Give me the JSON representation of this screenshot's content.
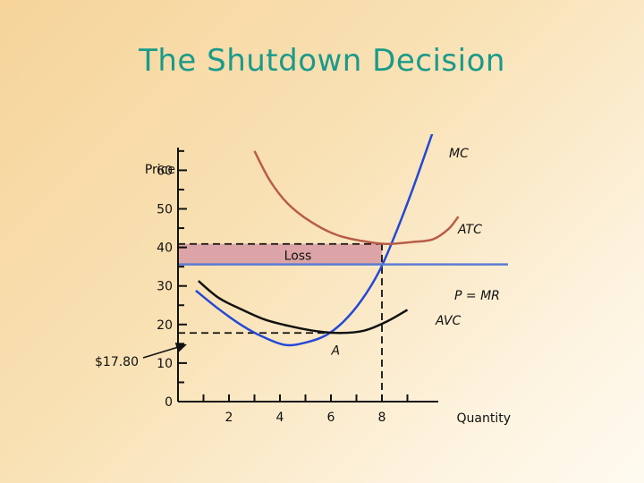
{
  "slide": {
    "title": "The Shutdown Decision"
  },
  "chart_data": {
    "type": "line",
    "title": "The Shutdown Decision",
    "xlabel": "Quantity",
    "ylabel": "Price",
    "xlim": [
      0,
      12
    ],
    "ylim": [
      0,
      70
    ],
    "x_ticks": [
      2,
      4,
      6,
      8
    ],
    "x_tick_labels": [
      "2",
      "4",
      "6",
      "8"
    ],
    "y_ticks": [
      0,
      10,
      20,
      30,
      40,
      50,
      60
    ],
    "y_tick_labels": [
      "0",
      "10",
      "20",
      "30",
      "40",
      "50",
      "60"
    ],
    "grid": false,
    "series": [
      {
        "name": "MC",
        "color": "#2448d6",
        "x": [
          0.7,
          1.6,
          2.5,
          3.3,
          4.2,
          5.0,
          5.8,
          6.5,
          7.2,
          7.9,
          8.5,
          9.2,
          10.0,
          10.8
        ],
        "y": [
          28.8,
          24.0,
          19.8,
          16.9,
          14.7,
          15.3,
          17.2,
          20.8,
          26.3,
          33.9,
          43.0,
          55.0,
          70.0,
          85.0
        ]
      },
      {
        "name": "ATC",
        "color": "#b85c48",
        "x": [
          3.0,
          3.6,
          4.3,
          5.2,
          6.2,
          7.2,
          8.2,
          9.2,
          10.0,
          10.6,
          11.0
        ],
        "y": [
          65.0,
          57.4,
          51.4,
          46.7,
          43.3,
          41.7,
          40.9,
          41.4,
          42.1,
          44.7,
          48.0
        ]
      },
      {
        "name": "AVC",
        "color": "#111111",
        "x": [
          0.8,
          1.6,
          2.5,
          3.4,
          4.3,
          5.3,
          6.3,
          7.3,
          8.2,
          9.0
        ],
        "y": [
          31.3,
          26.9,
          23.9,
          21.3,
          19.7,
          18.4,
          17.8,
          18.4,
          20.8,
          23.8
        ]
      },
      {
        "name": "P = MR",
        "color": "#5b7bd4",
        "x": [
          0,
          12
        ],
        "y": [
          35.6,
          35.6
        ]
      }
    ],
    "loss_region": {
      "label": "Loss",
      "x": [
        0,
        8
      ],
      "y": [
        35.6,
        40.9
      ]
    },
    "reference_lines": [
      {
        "axis": "vertical",
        "x": 8,
        "y": [
          0,
          40.9
        ]
      },
      {
        "axis": "horizontal",
        "y": 40.9,
        "x": [
          0,
          8
        ]
      },
      {
        "axis": "horizontal",
        "y": 17.8,
        "x": [
          0,
          6.3
        ]
      }
    ],
    "annotations": [
      {
        "text": "A",
        "x": 6.3,
        "y": 17.8
      },
      {
        "text": "$17.80",
        "y": 17.8
      }
    ]
  }
}
